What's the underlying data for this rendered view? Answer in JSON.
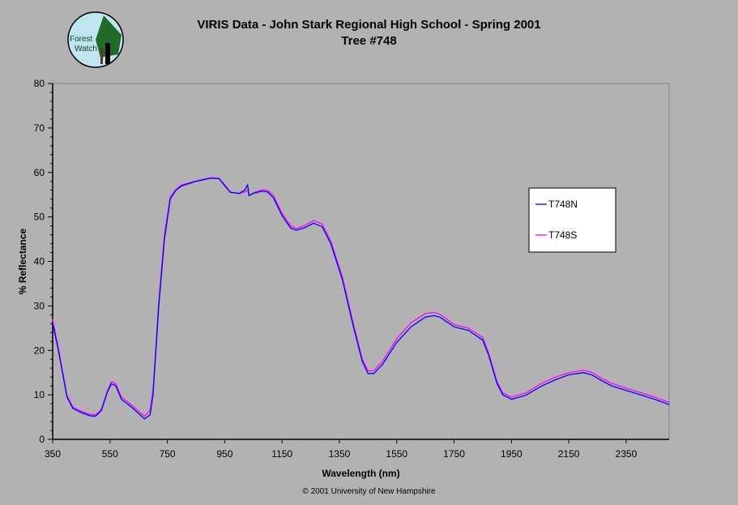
{
  "logo": {
    "text": "Forest Watch"
  },
  "copyright": "© 2001 University of New Hampshire",
  "chart_data": {
    "type": "line",
    "title": "VIRIS Data - John Stark Regional High School - Spring 2001",
    "subtitle": "Tree #748",
    "xlabel": "Wavelength (nm)",
    "ylabel": "% Reflectance",
    "xlim": [
      350,
      2500
    ],
    "ylim": [
      0,
      80
    ],
    "xticks": [
      350,
      550,
      750,
      950,
      1150,
      1350,
      1550,
      1750,
      1950,
      2150,
      2350
    ],
    "yticks": [
      0,
      10,
      20,
      30,
      40,
      50,
      60,
      70,
      80
    ],
    "grid": false,
    "legend": "right",
    "x": [
      350,
      370,
      400,
      420,
      450,
      480,
      500,
      520,
      540,
      555,
      570,
      590,
      620,
      650,
      670,
      690,
      700,
      720,
      740,
      760,
      780,
      800,
      850,
      900,
      930,
      950,
      970,
      1000,
      1020,
      1030,
      1035,
      1050,
      1080,
      1100,
      1120,
      1150,
      1180,
      1200,
      1230,
      1260,
      1290,
      1320,
      1360,
      1400,
      1430,
      1450,
      1470,
      1500,
      1550,
      1600,
      1650,
      1680,
      1700,
      1750,
      1800,
      1850,
      1870,
      1900,
      1920,
      1950,
      2000,
      2050,
      2100,
      2150,
      2200,
      2230,
      2270,
      2300,
      2350,
      2400,
      2450,
      2500
    ],
    "series": [
      {
        "name": "T748N",
        "color": "#0000ff",
        "values": [
          26,
          20,
          9.5,
          7,
          6,
          5.3,
          5.2,
          6.5,
          10.5,
          12.5,
          12,
          9,
          7.5,
          5.8,
          4.6,
          5.5,
          10,
          30,
          45,
          54,
          56,
          57,
          58,
          58.7,
          58.6,
          57,
          55.5,
          55.3,
          56,
          57.2,
          54.8,
          55.3,
          55.8,
          55.6,
          54.3,
          50.3,
          47.5,
          47,
          47.6,
          48.6,
          47.8,
          44,
          36,
          25,
          17.5,
          14.8,
          14.8,
          16.8,
          21.8,
          25.3,
          27.5,
          27.8,
          27.5,
          25.3,
          24.5,
          22.3,
          19,
          12.5,
          10,
          9,
          9.9,
          11.8,
          13.3,
          14.5,
          15,
          14.5,
          13,
          12,
          11,
          10,
          9,
          7.8
        ]
      },
      {
        "name": "T748S",
        "color": "#ff00ff",
        "values": [
          27,
          20.5,
          9.8,
          7.3,
          6.3,
          5.6,
          5.5,
          6.8,
          10.8,
          13,
          12.5,
          9.5,
          8,
          6.3,
          5.2,
          6.5,
          11,
          31,
          46,
          54.5,
          56.2,
          57.2,
          58.1,
          58.8,
          58.7,
          57.2,
          55.6,
          55.2,
          55.6,
          56,
          54.8,
          55.4,
          56.1,
          56,
          54.8,
          50.8,
          48,
          47.4,
          48.1,
          49.2,
          48.4,
          44.6,
          36.6,
          25.6,
          18,
          15.4,
          15.4,
          17.5,
          22.6,
          26.2,
          28.3,
          28.5,
          28.2,
          25.8,
          25,
          22.9,
          19.5,
          13,
          10.4,
          9.5,
          10.4,
          12.4,
          13.9,
          15,
          15.5,
          15.1,
          13.5,
          12.6,
          11.5,
          10.5,
          9.5,
          8.3
        ]
      }
    ]
  }
}
